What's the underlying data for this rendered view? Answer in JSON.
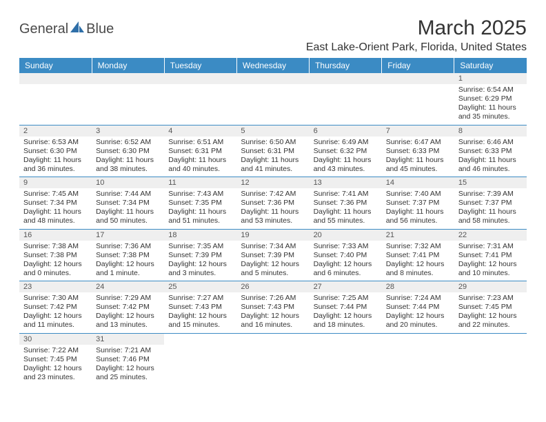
{
  "logo": {
    "text1": "General",
    "text2": "Blue",
    "text_color": "#4a4a4a",
    "accent_color": "#2f6fa8"
  },
  "title": "March 2025",
  "location": "East Lake-Orient Park, Florida, United States",
  "colors": {
    "header_bg": "#3b8bc4",
    "header_text": "#ffffff",
    "daynum_bg": "#efefef",
    "cell_border": "#3b8bc4",
    "text": "#333333"
  },
  "day_headers": [
    "Sunday",
    "Monday",
    "Tuesday",
    "Wednesday",
    "Thursday",
    "Friday",
    "Saturday"
  ],
  "leading_blank_row": true,
  "weeks": [
    [
      null,
      null,
      null,
      null,
      null,
      null,
      {
        "n": "1",
        "sunrise": "Sunrise: 6:54 AM",
        "sunset": "Sunset: 6:29 PM",
        "daylight": "Daylight: 11 hours and 35 minutes."
      }
    ],
    [
      {
        "n": "2",
        "sunrise": "Sunrise: 6:53 AM",
        "sunset": "Sunset: 6:30 PM",
        "daylight": "Daylight: 11 hours and 36 minutes."
      },
      {
        "n": "3",
        "sunrise": "Sunrise: 6:52 AM",
        "sunset": "Sunset: 6:30 PM",
        "daylight": "Daylight: 11 hours and 38 minutes."
      },
      {
        "n": "4",
        "sunrise": "Sunrise: 6:51 AM",
        "sunset": "Sunset: 6:31 PM",
        "daylight": "Daylight: 11 hours and 40 minutes."
      },
      {
        "n": "5",
        "sunrise": "Sunrise: 6:50 AM",
        "sunset": "Sunset: 6:31 PM",
        "daylight": "Daylight: 11 hours and 41 minutes."
      },
      {
        "n": "6",
        "sunrise": "Sunrise: 6:49 AM",
        "sunset": "Sunset: 6:32 PM",
        "daylight": "Daylight: 11 hours and 43 minutes."
      },
      {
        "n": "7",
        "sunrise": "Sunrise: 6:47 AM",
        "sunset": "Sunset: 6:33 PM",
        "daylight": "Daylight: 11 hours and 45 minutes."
      },
      {
        "n": "8",
        "sunrise": "Sunrise: 6:46 AM",
        "sunset": "Sunset: 6:33 PM",
        "daylight": "Daylight: 11 hours and 46 minutes."
      }
    ],
    [
      {
        "n": "9",
        "sunrise": "Sunrise: 7:45 AM",
        "sunset": "Sunset: 7:34 PM",
        "daylight": "Daylight: 11 hours and 48 minutes."
      },
      {
        "n": "10",
        "sunrise": "Sunrise: 7:44 AM",
        "sunset": "Sunset: 7:34 PM",
        "daylight": "Daylight: 11 hours and 50 minutes."
      },
      {
        "n": "11",
        "sunrise": "Sunrise: 7:43 AM",
        "sunset": "Sunset: 7:35 PM",
        "daylight": "Daylight: 11 hours and 51 minutes."
      },
      {
        "n": "12",
        "sunrise": "Sunrise: 7:42 AM",
        "sunset": "Sunset: 7:36 PM",
        "daylight": "Daylight: 11 hours and 53 minutes."
      },
      {
        "n": "13",
        "sunrise": "Sunrise: 7:41 AM",
        "sunset": "Sunset: 7:36 PM",
        "daylight": "Daylight: 11 hours and 55 minutes."
      },
      {
        "n": "14",
        "sunrise": "Sunrise: 7:40 AM",
        "sunset": "Sunset: 7:37 PM",
        "daylight": "Daylight: 11 hours and 56 minutes."
      },
      {
        "n": "15",
        "sunrise": "Sunrise: 7:39 AM",
        "sunset": "Sunset: 7:37 PM",
        "daylight": "Daylight: 11 hours and 58 minutes."
      }
    ],
    [
      {
        "n": "16",
        "sunrise": "Sunrise: 7:38 AM",
        "sunset": "Sunset: 7:38 PM",
        "daylight": "Daylight: 12 hours and 0 minutes."
      },
      {
        "n": "17",
        "sunrise": "Sunrise: 7:36 AM",
        "sunset": "Sunset: 7:38 PM",
        "daylight": "Daylight: 12 hours and 1 minute."
      },
      {
        "n": "18",
        "sunrise": "Sunrise: 7:35 AM",
        "sunset": "Sunset: 7:39 PM",
        "daylight": "Daylight: 12 hours and 3 minutes."
      },
      {
        "n": "19",
        "sunrise": "Sunrise: 7:34 AM",
        "sunset": "Sunset: 7:39 PM",
        "daylight": "Daylight: 12 hours and 5 minutes."
      },
      {
        "n": "20",
        "sunrise": "Sunrise: 7:33 AM",
        "sunset": "Sunset: 7:40 PM",
        "daylight": "Daylight: 12 hours and 6 minutes."
      },
      {
        "n": "21",
        "sunrise": "Sunrise: 7:32 AM",
        "sunset": "Sunset: 7:41 PM",
        "daylight": "Daylight: 12 hours and 8 minutes."
      },
      {
        "n": "22",
        "sunrise": "Sunrise: 7:31 AM",
        "sunset": "Sunset: 7:41 PM",
        "daylight": "Daylight: 12 hours and 10 minutes."
      }
    ],
    [
      {
        "n": "23",
        "sunrise": "Sunrise: 7:30 AM",
        "sunset": "Sunset: 7:42 PM",
        "daylight": "Daylight: 12 hours and 11 minutes."
      },
      {
        "n": "24",
        "sunrise": "Sunrise: 7:29 AM",
        "sunset": "Sunset: 7:42 PM",
        "daylight": "Daylight: 12 hours and 13 minutes."
      },
      {
        "n": "25",
        "sunrise": "Sunrise: 7:27 AM",
        "sunset": "Sunset: 7:43 PM",
        "daylight": "Daylight: 12 hours and 15 minutes."
      },
      {
        "n": "26",
        "sunrise": "Sunrise: 7:26 AM",
        "sunset": "Sunset: 7:43 PM",
        "daylight": "Daylight: 12 hours and 16 minutes."
      },
      {
        "n": "27",
        "sunrise": "Sunrise: 7:25 AM",
        "sunset": "Sunset: 7:44 PM",
        "daylight": "Daylight: 12 hours and 18 minutes."
      },
      {
        "n": "28",
        "sunrise": "Sunrise: 7:24 AM",
        "sunset": "Sunset: 7:44 PM",
        "daylight": "Daylight: 12 hours and 20 minutes."
      },
      {
        "n": "29",
        "sunrise": "Sunrise: 7:23 AM",
        "sunset": "Sunset: 7:45 PM",
        "daylight": "Daylight: 12 hours and 22 minutes."
      }
    ],
    [
      {
        "n": "30",
        "sunrise": "Sunrise: 7:22 AM",
        "sunset": "Sunset: 7:45 PM",
        "daylight": "Daylight: 12 hours and 23 minutes."
      },
      {
        "n": "31",
        "sunrise": "Sunrise: 7:21 AM",
        "sunset": "Sunset: 7:46 PM",
        "daylight": "Daylight: 12 hours and 25 minutes."
      },
      null,
      null,
      null,
      null,
      null
    ]
  ]
}
